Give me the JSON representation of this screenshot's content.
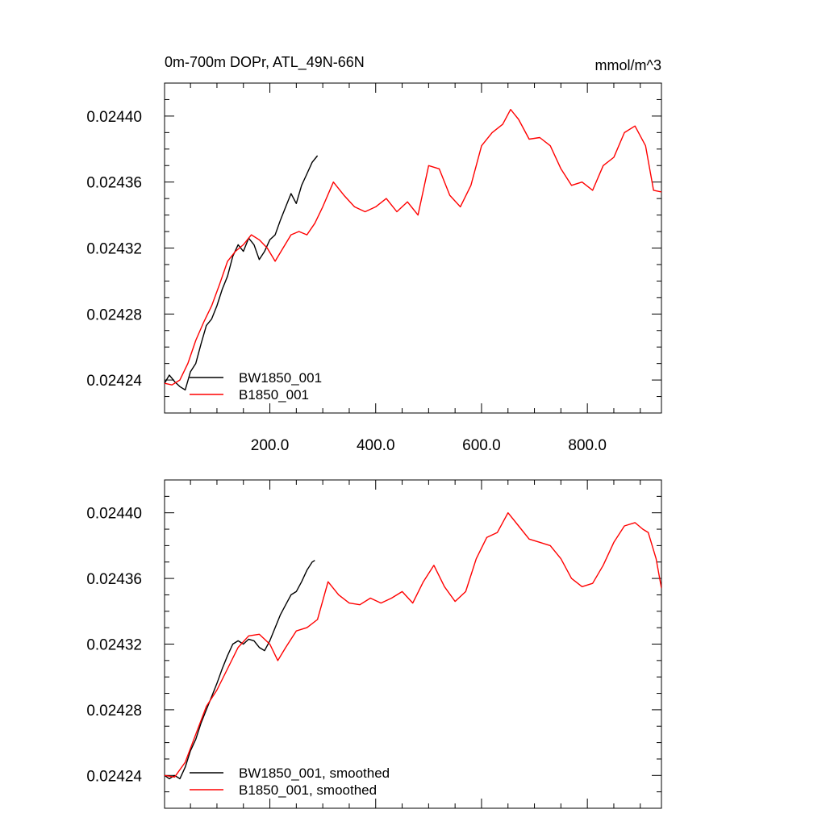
{
  "chart_data": [
    {
      "type": "line",
      "title": "0m-700m DOPr, ATL_49N-66N",
      "units": "mmol/m^3",
      "xlabel": "",
      "ylabel": "",
      "xlim": [
        1,
        940
      ],
      "ylim": [
        0.02422,
        0.02442
      ],
      "xticks": [
        200,
        400,
        600,
        800
      ],
      "xtick_labels": [
        "200.0",
        "400.0",
        "600.0",
        "800.0"
      ],
      "yticks": [
        0.02424,
        0.02428,
        0.02432,
        0.02436,
        0.0244
      ],
      "ytick_labels": [
        "0.02424",
        "0.02428",
        "0.02432",
        "0.02436",
        "0.02440"
      ],
      "show_xtick_labels": true,
      "legend_position": "bottom-left",
      "series": [
        {
          "name": "BW1850_001",
          "color": "#000000",
          "x": [
            1,
            10,
            20,
            30,
            40,
            50,
            60,
            70,
            80,
            90,
            100,
            110,
            120,
            130,
            140,
            150,
            160,
            170,
            180,
            190,
            200,
            210,
            220,
            230,
            240,
            250,
            260,
            270,
            280,
            290
          ],
          "values": [
            0.024238,
            0.024243,
            0.024239,
            0.024236,
            0.024234,
            0.024245,
            0.02425,
            0.024262,
            0.024273,
            0.024277,
            0.024285,
            0.024295,
            0.024303,
            0.024315,
            0.024322,
            0.024318,
            0.024326,
            0.024322,
            0.024313,
            0.024318,
            0.024325,
            0.024328,
            0.024337,
            0.024345,
            0.024353,
            0.024347,
            0.024358,
            0.024365,
            0.024372,
            0.024376
          ]
        },
        {
          "name": "B1850_001",
          "color": "#ff0000",
          "x": [
            1,
            15,
            30,
            45,
            60,
            75,
            90,
            105,
            120,
            135,
            150,
            165,
            180,
            195,
            210,
            225,
            240,
            255,
            270,
            285,
            300,
            320,
            340,
            360,
            380,
            400,
            420,
            440,
            460,
            480,
            500,
            520,
            540,
            560,
            580,
            600,
            620,
            640,
            655,
            670,
            690,
            710,
            730,
            750,
            770,
            790,
            810,
            830,
            850,
            870,
            890,
            910,
            925,
            940
          ],
          "values": [
            0.024238,
            0.024237,
            0.02424,
            0.02425,
            0.024264,
            0.024275,
            0.024285,
            0.024298,
            0.024312,
            0.024318,
            0.024322,
            0.024328,
            0.024325,
            0.02432,
            0.024312,
            0.02432,
            0.024328,
            0.02433,
            0.024328,
            0.024335,
            0.024345,
            0.02436,
            0.024352,
            0.024345,
            0.024342,
            0.024345,
            0.02435,
            0.024342,
            0.024348,
            0.02434,
            0.02437,
            0.024368,
            0.024352,
            0.024345,
            0.024358,
            0.024382,
            0.02439,
            0.024395,
            0.024404,
            0.024398,
            0.024386,
            0.024387,
            0.024382,
            0.024368,
            0.024358,
            0.02436,
            0.024355,
            0.02437,
            0.024375,
            0.02439,
            0.024394,
            0.024382,
            0.024355,
            0.024354
          ]
        }
      ]
    },
    {
      "type": "line",
      "title": "",
      "units": "",
      "xlabel": "",
      "ylabel": "",
      "xlim": [
        1,
        940
      ],
      "ylim": [
        0.02422,
        0.02442
      ],
      "xticks": [
        200,
        400,
        600,
        800
      ],
      "xtick_labels": [
        "",
        "",
        "",
        ""
      ],
      "yticks": [
        0.02424,
        0.02428,
        0.02432,
        0.02436,
        0.0244
      ],
      "ytick_labels": [
        "0.02424",
        "0.02428",
        "0.02432",
        "0.02436",
        "0.02440"
      ],
      "show_xtick_labels": false,
      "legend_position": "bottom-left",
      "series": [
        {
          "name": "BW1850_001, smoothed",
          "color": "#000000",
          "x": [
            1,
            10,
            20,
            30,
            40,
            50,
            60,
            70,
            80,
            90,
            100,
            110,
            120,
            130,
            140,
            150,
            160,
            170,
            180,
            190,
            200,
            210,
            220,
            230,
            240,
            250,
            260,
            270,
            280,
            285
          ],
          "values": [
            0.02424,
            0.024238,
            0.02424,
            0.024238,
            0.024245,
            0.024255,
            0.024262,
            0.024272,
            0.02428,
            0.024288,
            0.024296,
            0.024305,
            0.024313,
            0.02432,
            0.024322,
            0.02432,
            0.024323,
            0.024322,
            0.024318,
            0.024316,
            0.024322,
            0.02433,
            0.024338,
            0.024344,
            0.02435,
            0.024352,
            0.024358,
            0.024365,
            0.02437,
            0.024371
          ]
        },
        {
          "name": "B1850_001, smoothed",
          "color": "#ff0000",
          "x": [
            1,
            20,
            40,
            60,
            80,
            100,
            120,
            140,
            160,
            180,
            200,
            215,
            230,
            250,
            270,
            290,
            310,
            330,
            350,
            370,
            390,
            410,
            430,
            450,
            470,
            490,
            510,
            530,
            550,
            570,
            590,
            610,
            630,
            650,
            670,
            690,
            710,
            730,
            750,
            770,
            790,
            810,
            830,
            850,
            870,
            890,
            905,
            915,
            930,
            940
          ],
          "values": [
            0.02424,
            0.024239,
            0.024248,
            0.024265,
            0.024282,
            0.024292,
            0.024305,
            0.024318,
            0.024325,
            0.024326,
            0.02432,
            0.02431,
            0.024318,
            0.024328,
            0.02433,
            0.024335,
            0.024358,
            0.02435,
            0.024345,
            0.024344,
            0.024348,
            0.024345,
            0.024348,
            0.024352,
            0.024345,
            0.024358,
            0.024368,
            0.024355,
            0.024346,
            0.024352,
            0.024372,
            0.024385,
            0.024388,
            0.0244,
            0.024392,
            0.024384,
            0.024382,
            0.02438,
            0.024372,
            0.02436,
            0.024355,
            0.024357,
            0.024368,
            0.024382,
            0.024392,
            0.024394,
            0.02439,
            0.024388,
            0.024372,
            0.024354
          ]
        }
      ]
    }
  ]
}
